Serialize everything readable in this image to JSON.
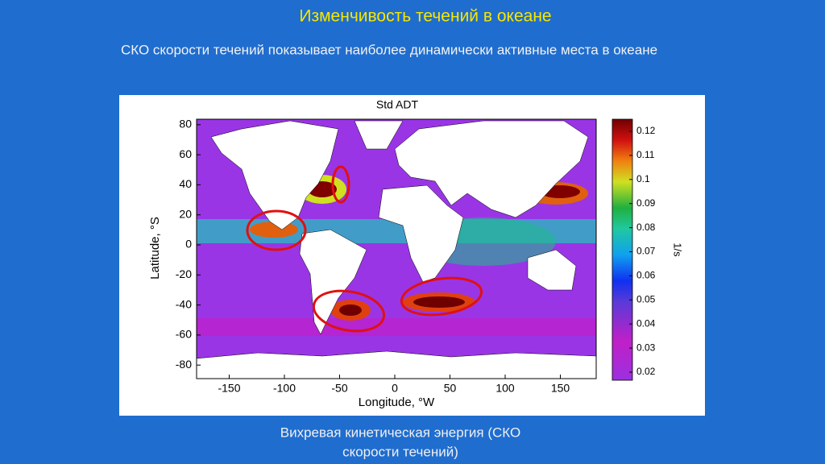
{
  "slide": {
    "title": "Изменчивость течений в океане",
    "subtitle": "СКО скорости течений показывает наиболее динамически активные места в океане",
    "caption": [
      "Вихревая кинетическая энергия (СКО",
      "скорости течений)"
    ]
  },
  "figure": {
    "title": "Std ADT",
    "x_label": "Longitude, °W",
    "y_label": "Latitude, °S",
    "xticks": [
      -150,
      -100,
      -50,
      0,
      50,
      100,
      150
    ],
    "yticks": [
      80,
      60,
      40,
      20,
      0,
      -20,
      -40,
      -60,
      -80
    ],
    "colorbar_label": "1/s",
    "colorbar_ticks": [
      0.12,
      0.11,
      0.1,
      0.09,
      0.08,
      0.07,
      0.06,
      0.05,
      0.04,
      0.03,
      0.02
    ]
  }
}
